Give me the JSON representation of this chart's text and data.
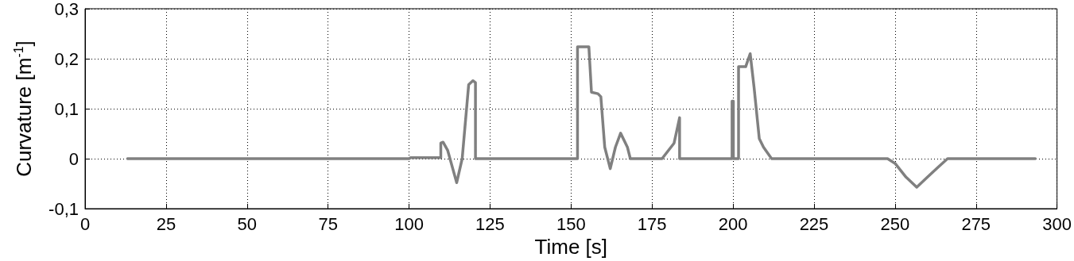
{
  "chart_data": {
    "type": "line",
    "xlabel": "Time [s]",
    "ylabel": "Curvature [m$^{-1}$]",
    "x": [
      13.1,
      100,
      100.5,
      109.8,
      109.8,
      110.5,
      111.9,
      114.7,
      116.4,
      118.4,
      119.7,
      120.5,
      120.5,
      152.0,
      152.0,
      155.5,
      155.9,
      156.3,
      158.3,
      159.2,
      160.4,
      162.1,
      163.7,
      165.3,
      167.4,
      168.3,
      178.1,
      178.8,
      181.8,
      183.5,
      183.5,
      199.7,
      199.7,
      200.1,
      200.1,
      201.7,
      201.7,
      203.9,
      205.3,
      206.5,
      208.1,
      209.4,
      211.9,
      247.7,
      250.1,
      253.4,
      256.7,
      260.0,
      263.3,
      266.2,
      293.3
    ],
    "series": [
      {
        "color": "#808080",
        "values": [
          0,
          0,
          0.002,
          0.002,
          0.031,
          0.033,
          0.017,
          -0.048,
          0,
          0.148,
          0.156,
          0.152,
          0,
          0,
          0.224,
          0.224,
          0.179,
          0.133,
          0.13,
          0.124,
          0.023,
          -0.02,
          0.023,
          0.051,
          0.023,
          0,
          0,
          0.006,
          0.031,
          0.082,
          0,
          0,
          0.115,
          0.115,
          0,
          0,
          0.184,
          0.184,
          0.21,
          0.142,
          0.04,
          0.023,
          0,
          0,
          -0.01,
          -0.037,
          -0.057,
          -0.037,
          -0.017,
          0,
          0
        ]
      }
    ],
    "xlim": [
      0,
      300
    ],
    "xticks": [
      0,
      25,
      50,
      75,
      100,
      125,
      150,
      175,
      200,
      225,
      250,
      275,
      300
    ],
    "ylim": [
      -0.1,
      0.3
    ],
    "yticks": [
      {
        "value": -0.1,
        "label": "-0,1"
      },
      0,
      {
        "value": 0.1,
        "label": "0,1"
      },
      {
        "value": 0.2,
        "label": "0,2"
      },
      {
        "value": 0.3,
        "label": "0,3"
      }
    ],
    "grid": true,
    "marker": "none",
    "line_style": "solid"
  }
}
